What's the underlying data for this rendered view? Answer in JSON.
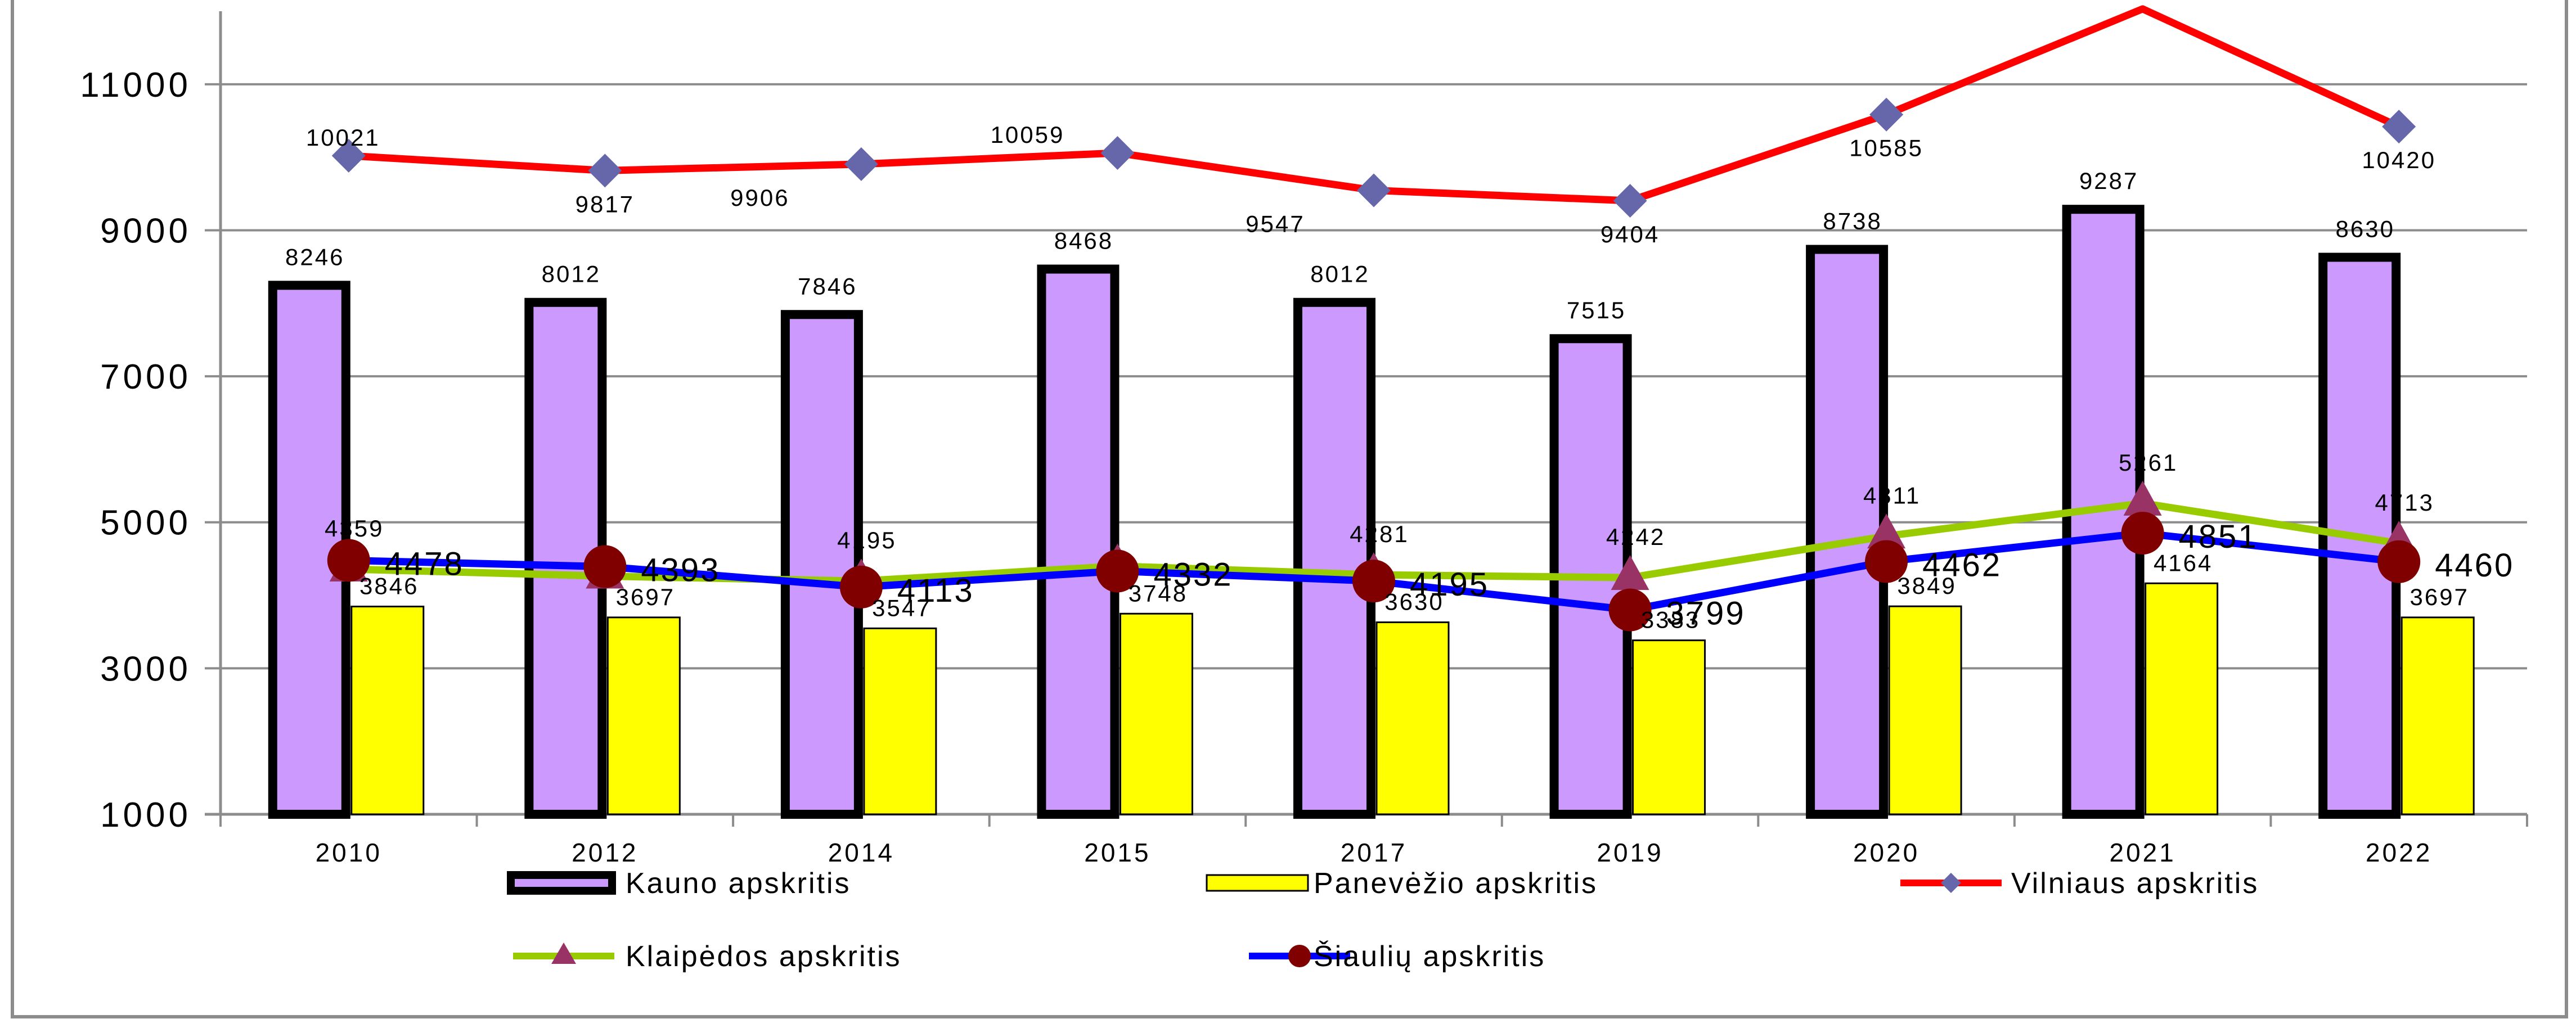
{
  "chart_data": {
    "type": "bar",
    "categories": [
      "2010",
      "2012",
      "2014",
      "2015",
      "2017",
      "2019",
      "2020",
      "2021",
      "2022"
    ],
    "ylim": [
      1000,
      12000
    ],
    "yticks": [
      "1000",
      "3000",
      "5000",
      "7000",
      "9000",
      "11000"
    ],
    "grid": true,
    "legend_position": "bottom",
    "series": [
      {
        "name": "Kauno apskritis",
        "kind": "bar",
        "color": "#cc99ff",
        "values": [
          8246,
          8012,
          7846,
          8468,
          8012,
          7515,
          8738,
          9287,
          8630
        ],
        "labels": [
          "8246",
          "8012",
          "7846",
          "8468",
          "8012",
          "7515",
          "8738",
          "9287",
          "8630"
        ]
      },
      {
        "name": "Panevėžio apskritis",
        "kind": "bar",
        "color": "#ffff00",
        "values": [
          3846,
          3697,
          3547,
          3748,
          3630,
          3383,
          3849,
          4164,
          3697
        ],
        "labels": [
          "3846",
          "3697",
          "3547",
          "3748",
          "3630",
          "3383",
          "3849",
          "4164",
          "3697"
        ]
      },
      {
        "name": "Vilniaus apskritis",
        "kind": "line",
        "color": "#ff0000",
        "marker": "diamond",
        "marker_color": "#6666aa",
        "values": [
          10021,
          9817,
          9906,
          10059,
          9547,
          9404,
          10585,
          12032,
          10420
        ],
        "labels": [
          "10021",
          "9817",
          "9906",
          "10059",
          "9547",
          "9404",
          "10585",
          "",
          "10420"
        ]
      },
      {
        "name": "Klaipėdos apskritis",
        "kind": "line",
        "color": "#99cc00",
        "marker": "triangle",
        "marker_color": "#993366",
        "values": [
          4359,
          4262,
          4195,
          4400,
          4281,
          4242,
          4811,
          5261,
          4713
        ],
        "labels": [
          "4359",
          "",
          "4195",
          "",
          "4281",
          "4242",
          "4811",
          "5261",
          "4713"
        ]
      },
      {
        "name": "Šiaulių apskritis",
        "kind": "line",
        "color": "#0000ff",
        "marker": "circle",
        "marker_color": "#800000",
        "values": [
          4478,
          4393,
          4113,
          4332,
          4195,
          3799,
          4462,
          4851,
          4460
        ],
        "labels": [
          "4478",
          "4393",
          "4113",
          "4332",
          "4195",
          "3799",
          "4462",
          "4851",
          "4460"
        ]
      }
    ]
  }
}
